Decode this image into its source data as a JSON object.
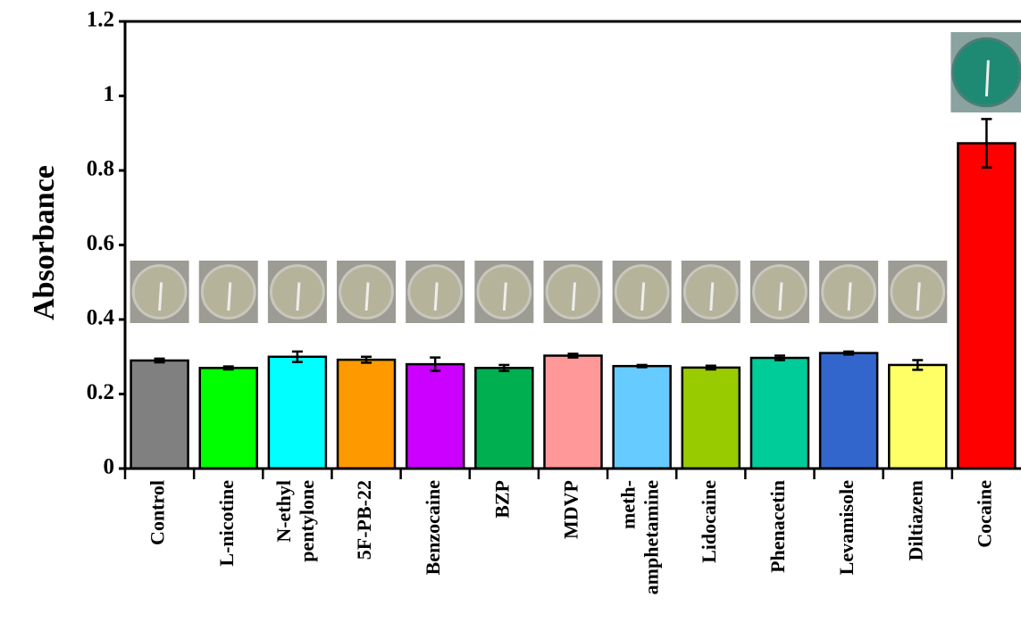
{
  "chart_data": {
    "type": "bar",
    "y_label": "Absorbance",
    "categories": [
      "Control",
      "L-nicotine",
      "N-ethyl pentylone",
      "5F-PB-22",
      "Benzocaine",
      "BZP",
      "MDVP",
      "meth- amphetamine",
      "Lidocaine",
      "Phenacetin",
      "Levamisole",
      "Diltiazem",
      "Cocaine"
    ],
    "values": [
      0.29,
      0.27,
      0.3,
      0.292,
      0.28,
      0.27,
      0.303,
      0.275,
      0.271,
      0.297,
      0.31,
      0.278,
      0.873
    ],
    "errors": [
      0.005,
      0.004,
      0.014,
      0.008,
      0.018,
      0.008,
      0.005,
      0.003,
      0.005,
      0.006,
      0.004,
      0.013,
      0.065
    ],
    "colors": [
      "#808080",
      "#00ff00",
      "#00ffff",
      "#ff9900",
      "#cc00ff",
      "#00b050",
      "#ff9999",
      "#66ccff",
      "#99cc00",
      "#00cc99",
      "#3366cc",
      "#ffff66",
      "#ff0000"
    ],
    "ylim": [
      0,
      1.2
    ],
    "yticks": [
      0,
      0.2,
      0.4,
      0.6,
      0.8,
      1,
      1.2
    ]
  }
}
